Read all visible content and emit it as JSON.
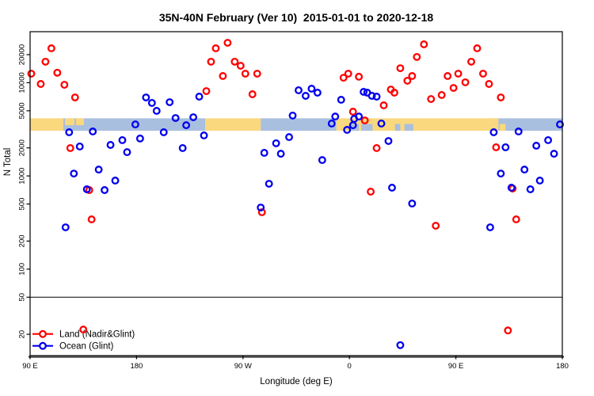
{
  "chart_data": {
    "type": "scatter",
    "title": "35N-40N February (Ver 10)  2015-01-01 to 2020-12-18",
    "xlabel": "Longitude (deg E)",
    "ylabel": "N Total",
    "x_axis": {
      "unit": "degrees east of 90E (axis wraps eastward 450 deg)",
      "range_deg": [
        0,
        450
      ],
      "ticks": [
        {
          "deg": 0,
          "label": "90 E"
        },
        {
          "deg": 90,
          "label": "180"
        },
        {
          "deg": 180,
          "label": "90 W"
        },
        {
          "deg": 270,
          "label": "0"
        },
        {
          "deg": 360,
          "label": "90 E"
        },
        {
          "deg": 450,
          "label": "180"
        }
      ]
    },
    "y_axis": {
      "scale": "log10",
      "range": [
        12,
        35000
      ],
      "ticks": [
        20,
        50,
        100,
        200,
        500,
        1000,
        2000,
        5000,
        10000,
        20000
      ]
    },
    "hline": 50,
    "map_band": {
      "v_low": 3050,
      "v_high": 4150,
      "land_color": "#FAD87E",
      "ocean_color": "#A9BFDF",
      "segments": [
        {
          "type": "land",
          "from": 0,
          "to": 28
        },
        {
          "type": "ocean",
          "from": 28,
          "to": 148
        },
        {
          "type": "land",
          "from": 148,
          "to": 195
        },
        {
          "type": "ocean",
          "from": 195,
          "to": 259
        },
        {
          "type": "land",
          "from": 259,
          "to": 391
        },
        {
          "type": "ocean",
          "from": 391,
          "to": 450
        }
      ],
      "patches": [
        {
          "type": "land",
          "from": 29.5,
          "to": 37.5,
          "part": "upper"
        },
        {
          "type": "land",
          "from": 38.8,
          "to": 45.5,
          "part": "upper"
        },
        {
          "type": "land",
          "from": 391,
          "to": 396,
          "part": "full"
        },
        {
          "type": "land",
          "from": 397,
          "to": 402,
          "part": "lower"
        },
        {
          "type": "ocean",
          "from": 271,
          "to": 278,
          "part": "lower"
        },
        {
          "type": "ocean",
          "from": 280,
          "to": 289.5,
          "part": "lower"
        },
        {
          "type": "ocean",
          "from": 308.5,
          "to": 313,
          "part": "lower"
        },
        {
          "type": "ocean",
          "from": 316.5,
          "to": 324,
          "part": "lower"
        }
      ]
    },
    "series": [
      {
        "name": "Land (Nadir&Glint)",
        "color": "#FF0000",
        "points": [
          [
            18,
            23400
          ],
          [
            13,
            16800
          ],
          [
            1,
            12500
          ],
          [
            23,
            12800
          ],
          [
            9,
            9700
          ],
          [
            29,
            9500
          ],
          [
            38,
            6950
          ],
          [
            34,
            1990
          ],
          [
            50,
            705
          ],
          [
            52,
            342
          ],
          [
            157,
            23400
          ],
          [
            167,
            26800
          ],
          [
            153,
            16800
          ],
          [
            173,
            16800
          ],
          [
            178,
            15200
          ],
          [
            182,
            12500
          ],
          [
            192,
            12500
          ],
          [
            163,
            11800
          ],
          [
            149,
            8130
          ],
          [
            188,
            7520
          ],
          [
            196,
            408
          ],
          [
            265,
            11300
          ],
          [
            269,
            12500
          ],
          [
            278,
            11600
          ],
          [
            313,
            14300
          ],
          [
            333,
            25800
          ],
          [
            327,
            18900
          ],
          [
            323,
            11800
          ],
          [
            319,
            10500
          ],
          [
            305,
            8450
          ],
          [
            308,
            7820
          ],
          [
            299,
            5720
          ],
          [
            273,
            4890
          ],
          [
            283,
            3940
          ],
          [
            293,
            1990
          ],
          [
            288,
            678
          ],
          [
            339,
            6680
          ],
          [
            378,
            23400
          ],
          [
            373,
            16800
          ],
          [
            353,
            11800
          ],
          [
            362,
            12500
          ],
          [
            368,
            10100
          ],
          [
            358,
            8790
          ],
          [
            383,
            12500
          ],
          [
            388,
            9700
          ],
          [
            348,
            7380
          ],
          [
            398,
            6950
          ],
          [
            394,
            2030
          ],
          [
            408,
            733
          ],
          [
            343,
            292
          ],
          [
            411,
            342
          ],
          [
            45,
            22.5
          ],
          [
            404,
            22
          ]
        ]
      },
      {
        "name": "Ocean (Glint)",
        "color": "#0000EE",
        "points": [
          [
            98,
            6950
          ],
          [
            103,
            6070
          ],
          [
            107,
            4990
          ],
          [
            89,
            3570
          ],
          [
            113,
            2940
          ],
          [
            33,
            2940
          ],
          [
            53,
            3000
          ],
          [
            42,
            2070
          ],
          [
            68,
            2150
          ],
          [
            78,
            2420
          ],
          [
            93,
            2520
          ],
          [
            82,
            1800
          ],
          [
            37,
            1060
          ],
          [
            58,
            1170
          ],
          [
            72,
            892
          ],
          [
            48,
            719
          ],
          [
            63,
            705
          ],
          [
            30,
            281
          ],
          [
            118,
            6180
          ],
          [
            143,
            7090
          ],
          [
            123,
            4180
          ],
          [
            138,
            4260
          ],
          [
            132,
            3500
          ],
          [
            147,
            2720
          ],
          [
            129,
            1990
          ],
          [
            227,
            8300
          ],
          [
            222,
            4440
          ],
          [
            208,
            2240
          ],
          [
            219,
            2610
          ],
          [
            198,
            1770
          ],
          [
            212,
            1730
          ],
          [
            202,
            824
          ],
          [
            195,
            458
          ],
          [
            233,
            7230
          ],
          [
            238,
            8630
          ],
          [
            243,
            7820
          ],
          [
            263,
            6560
          ],
          [
            282,
            7980
          ],
          [
            285,
            7820
          ],
          [
            289,
            7230
          ],
          [
            293,
            7090
          ],
          [
            258,
            4340
          ],
          [
            255,
            3650
          ],
          [
            274,
            4090
          ],
          [
            278,
            4340
          ],
          [
            273,
            3500
          ],
          [
            268,
            3120
          ],
          [
            297,
            3650
          ],
          [
            303,
            2370
          ],
          [
            247,
            1480
          ],
          [
            306,
            748
          ],
          [
            323,
            506
          ],
          [
            392,
            2940
          ],
          [
            413,
            3000
          ],
          [
            448,
            3570
          ],
          [
            428,
            2110
          ],
          [
            438,
            2420
          ],
          [
            443,
            1730
          ],
          [
            402,
            2030
          ],
          [
            398,
            1060
          ],
          [
            418,
            1170
          ],
          [
            431,
            892
          ],
          [
            407,
            748
          ],
          [
            423,
            719
          ],
          [
            389,
            281
          ],
          [
            313,
            15.3
          ]
        ]
      }
    ],
    "legend": {
      "items": [
        {
          "label": "Land (Nadir&Glint)",
          "color": "#FF0000"
        },
        {
          "label": "Ocean (Glint)",
          "color": "#0000EE"
        }
      ]
    }
  }
}
